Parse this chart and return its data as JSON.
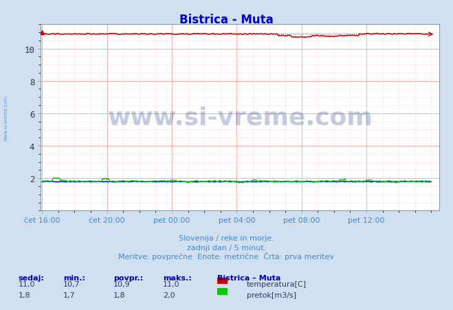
{
  "title": "Bistrica - Muta",
  "title_color": "#0000cc",
  "bg_color": "#d0e0f0",
  "plot_bg_color": "#ffffff",
  "grid_color_major": "#ff9999",
  "grid_color_minor": "#ffdddd",
  "xlabel_color": "#4488cc",
  "ylabel_color": "#555555",
  "ylim_min": 0,
  "ylim_max": 11.5,
  "yticks": [
    2,
    4,
    6,
    8,
    10
  ],
  "x_labels": [
    "čet 16:00",
    "čet 20:00",
    "pet 00:00",
    "pet 04:00",
    "pet 08:00",
    "pet 12:00"
  ],
  "x_positions": [
    0,
    48,
    96,
    144,
    192,
    240
  ],
  "n_points": 289,
  "temp_color": "#cc0000",
  "flow_color": "#00cc00",
  "height_color": "#0000cc",
  "watermark_text": "www.si-vreme.com",
  "watermark_color": "#1a3a8a",
  "sidewater_color": "#4488cc",
  "subtitle1": "Slovenija / reke in morje.",
  "subtitle2": "zadnji dan / 5 minut.",
  "subtitle3": "Meritve: povprečne  Enote: metrične  Črta: prva meritev",
  "legend_title": "Bistrica – Muta",
  "legend_temp": "temperatura[C]",
  "legend_flow": "pretok[m3/s]",
  "stats_headers": [
    "sedaj:",
    "min.:",
    "povpr.:",
    "maks.:"
  ],
  "stats_temp": [
    "11,0",
    "10,7",
    "10,9",
    "11,0"
  ],
  "stats_flow": [
    "1,8",
    "1,7",
    "1,8",
    "2,0"
  ],
  "header_color": "#0000aa",
  "stats_color": "#333366"
}
